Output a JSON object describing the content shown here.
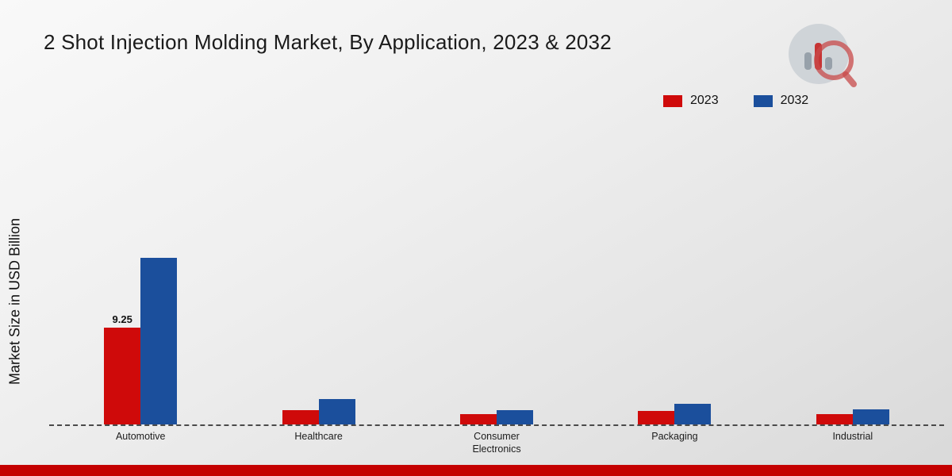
{
  "chart_data": {
    "type": "bar",
    "title": "2 Shot Injection Molding Market, By Application, 2023 & 2032",
    "ylabel": "Market Size in USD Billion",
    "xlabel": "",
    "categories": [
      "Automotive",
      "Healthcare",
      "Consumer Electronics",
      "Packaging",
      "Industrial"
    ],
    "series": [
      {
        "name": "2023",
        "color": "#cf0a0a",
        "values": [
          9.25,
          1.4,
          1.0,
          1.3,
          1.0
        ]
      },
      {
        "name": "2032",
        "color": "#1b4f9c",
        "values": [
          15.9,
          2.4,
          1.4,
          2.0,
          1.45
        ]
      }
    ],
    "ylim": [
      0,
      17
    ],
    "grid": false,
    "legend_position": "top-right",
    "bar_label": {
      "category_index": 0,
      "series_index": 0,
      "text": "9.25"
    }
  },
  "branding": {
    "logo_name": "market-research-future-logo",
    "footer_color": "#c40000"
  }
}
